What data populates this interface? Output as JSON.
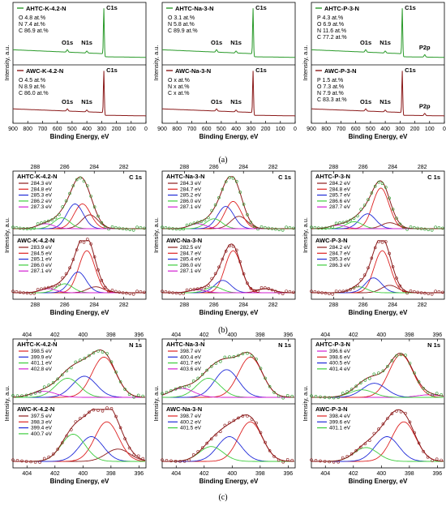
{
  "figure": {
    "captions": [
      "(a)",
      "(b)",
      "(c)"
    ],
    "colors": {
      "green": "#2a9a2a",
      "darkred": "#8b1a1a",
      "red": "#dd2222",
      "blue": "#1f2ad8",
      "magenta": "#d21ed2",
      "lightgreen": "#3ecc3e",
      "olive": "#7a8a2a"
    }
  },
  "chart_data": [
    {
      "id": "a1",
      "row": "a",
      "col": 0,
      "type": "line",
      "ylabel": "Intensity, a.u.",
      "xlabel": "Binding Energy, eV",
      "xticks": [
        900,
        800,
        700,
        600,
        500,
        400,
        300,
        200,
        100,
        0
      ],
      "xlim": [
        900,
        0
      ],
      "top": {
        "label": "AHTC-K-4.2-N",
        "legend_color": "green",
        "comp": [
          "O 4.8 at.%",
          "N 7.4 at.%",
          "C 86.9 at.%"
        ],
        "peaks": [
          "O1s",
          "N1s",
          "C1s"
        ],
        "has_p": false
      },
      "bottom": {
        "label": "AWC-K-4.2-N",
        "legend_color": "darkred",
        "comp": [
          "O 4.5 at.%",
          "N 8.9 at.%",
          "C 86.0 at.%"
        ],
        "peaks": [
          "O1s",
          "N1s",
          "C1s"
        ],
        "has_p": false
      }
    },
    {
      "id": "a2",
      "row": "a",
      "col": 1,
      "type": "line",
      "ylabel": "Intensity, a.u.",
      "xlabel": "Binding Energy, eV",
      "xticks": [
        900,
        800,
        700,
        600,
        500,
        400,
        300,
        200,
        100,
        0
      ],
      "xlim": [
        900,
        0
      ],
      "top": {
        "label": "AHTC-Na-3-N",
        "legend_color": "green",
        "comp": [
          "O 3.1 at.%",
          "N 5.8 at.%",
          "C 89.9 at.%"
        ],
        "peaks": [
          "O1s",
          "N1s",
          "C1s"
        ],
        "has_p": false
      },
      "bottom": {
        "label": "AWC-Na-3-N",
        "legend_color": "darkred",
        "comp": [
          "O x at.%",
          "N x at.%",
          "C x at.%"
        ],
        "peaks": [
          "O1s",
          "N1s",
          "C1s"
        ],
        "has_p": false
      }
    },
    {
      "id": "a3",
      "row": "a",
      "col": 2,
      "type": "line",
      "ylabel": "Intensity, a.u.",
      "xlabel": "Binding Energy, eV",
      "xticks": [
        900,
        800,
        700,
        600,
        500,
        400,
        300,
        200,
        100,
        0
      ],
      "xlim": [
        900,
        0
      ],
      "top": {
        "label": "AHTC-P-3-N",
        "legend_color": "green",
        "comp": [
          "P 4.3 at.%",
          "O 6.9 at.%",
          "N 11.6 at.%",
          "C 77.2 at.%"
        ],
        "peaks": [
          "O1s",
          "N1s",
          "C1s",
          "P2p"
        ],
        "has_p": true
      },
      "bottom": {
        "label": "AWC-P-3-N",
        "legend_color": "darkred",
        "comp": [
          "P 1.5 at.%",
          "O 7.3 at.%",
          "N 7.9 at.%",
          "C 83.3 at.%"
        ],
        "peaks": [
          "O1s",
          "N1s",
          "C1s",
          "P2p"
        ],
        "has_p": true
      }
    },
    {
      "id": "b1",
      "row": "b",
      "col": 0,
      "type": "line",
      "ylabel": "Intensity, a.u.",
      "xlabel": "Binding Energy, eV",
      "xticks": [
        288,
        286,
        284,
        282
      ],
      "xlim": [
        289.5,
        280.5
      ],
      "corner": "C 1s",
      "top": {
        "label": "AHTC-K-4.2-N",
        "entries": [
          {
            "t": "284.3 eV",
            "c": "darkred"
          },
          {
            "t": "284.8 eV",
            "c": "red"
          },
          {
            "t": "285.3 eV",
            "c": "blue"
          },
          {
            "t": "286.2 eV",
            "c": "lightgreen"
          },
          {
            "t": "287.3 eV",
            "c": "magenta"
          }
        ],
        "centers": [
          284.3,
          284.8,
          285.3,
          286.2,
          287.3
        ],
        "amps": [
          0.28,
          0.5,
          0.5,
          0.22,
          0.1
        ]
      },
      "bottom": {
        "label": "AWC-K-4.2-N",
        "entries": [
          {
            "t": "283.9 eV",
            "c": "darkred"
          },
          {
            "t": "284.5 eV",
            "c": "red"
          },
          {
            "t": "285.1 eV",
            "c": "blue"
          },
          {
            "t": "286.0 eV",
            "c": "lightgreen"
          },
          {
            "t": "287.1 eV",
            "c": "magenta"
          }
        ],
        "centers": [
          283.9,
          284.5,
          285.1,
          286.0,
          287.1
        ],
        "amps": [
          0.12,
          0.85,
          0.42,
          0.18,
          0.08
        ]
      }
    },
    {
      "id": "b2",
      "row": "b",
      "col": 1,
      "type": "line",
      "ylabel": "Intensity, a.u.",
      "xlabel": "Binding Energy, eV",
      "xticks": [
        288,
        286,
        284,
        282
      ],
      "xlim": [
        289.5,
        280.5
      ],
      "corner": "C 1s",
      "top": {
        "label": "AHTC-Na-3-N",
        "entries": [
          {
            "t": "284.3 eV",
            "c": "darkred"
          },
          {
            "t": "284.7 eV",
            "c": "red"
          },
          {
            "t": "285.2 eV",
            "c": "blue"
          },
          {
            "t": "286.0 eV",
            "c": "lightgreen"
          },
          {
            "t": "287.1 eV",
            "c": "magenta"
          }
        ],
        "centers": [
          284.3,
          284.7,
          285.2,
          286.0,
          287.1
        ],
        "amps": [
          0.25,
          0.55,
          0.45,
          0.2,
          0.1
        ]
      },
      "bottom": {
        "label": "AWC-Na-3-N",
        "entries": [
          {
            "t": "282.5 eV",
            "c": "darkred"
          },
          {
            "t": "284.7 eV",
            "c": "red"
          },
          {
            "t": "285.4 eV",
            "c": "blue"
          },
          {
            "t": "286.0 eV",
            "c": "lightgreen"
          },
          {
            "t": "287.1 eV",
            "c": "magenta"
          }
        ],
        "centers": [
          282.5,
          284.7,
          285.4,
          286.0,
          287.1
        ],
        "amps": [
          0.08,
          0.85,
          0.25,
          0.12,
          0.06
        ]
      }
    },
    {
      "id": "b3",
      "row": "b",
      "col": 2,
      "type": "line",
      "ylabel": "Intensity, a.u.",
      "xlabel": "Binding Energy, eV",
      "xticks": [
        288,
        286,
        284,
        282
      ],
      "xlim": [
        289.5,
        280.5
      ],
      "corner": "C 1s",
      "top": {
        "label": "AHTC-P-3-N",
        "entries": [
          {
            "t": "284.2 eV",
            "c": "darkred"
          },
          {
            "t": "284.8 eV",
            "c": "red"
          },
          {
            "t": "285.7 eV",
            "c": "blue"
          },
          {
            "t": "286.6 eV",
            "c": "lightgreen"
          },
          {
            "t": "287.7 eV",
            "c": "magenta"
          }
        ],
        "centers": [
          284.2,
          284.8,
          285.7,
          286.6,
          287.7
        ],
        "amps": [
          0.12,
          0.82,
          0.3,
          0.14,
          0.07
        ]
      },
      "bottom": {
        "label": "AWC-P-3-N",
        "entries": [
          {
            "t": "284.2 eV",
            "c": "darkred"
          },
          {
            "t": "284.7 eV",
            "c": "red"
          },
          {
            "t": "285.3 eV",
            "c": "blue"
          },
          {
            "t": "286.3 eV",
            "c": "lightgreen"
          }
        ],
        "centers": [
          284.2,
          284.7,
          285.3,
          286.3
        ],
        "amps": [
          0.15,
          0.85,
          0.3,
          0.12
        ]
      }
    },
    {
      "id": "c1",
      "row": "c",
      "col": 0,
      "type": "line",
      "ylabel": "Intensity, a.u.",
      "xlabel": "Binding Energy, eV",
      "xticks": [
        404,
        402,
        400,
        398,
        396
      ],
      "xlim": [
        405,
        395.5
      ],
      "corner": "N 1s",
      "top": {
        "label": "AHTC-K-4.2-N",
        "entries": [
          {
            "t": "398.5 eV",
            "c": "red"
          },
          {
            "t": "399.9 eV",
            "c": "blue"
          },
          {
            "t": "401.1 eV",
            "c": "lightgreen"
          },
          {
            "t": "402.8 eV",
            "c": "magenta"
          }
        ],
        "centers": [
          398.5,
          399.9,
          401.1,
          402.8
        ],
        "amps": [
          0.8,
          0.42,
          0.38,
          0.12
        ]
      },
      "bottom": {
        "label": "AWC-K-4.2-N",
        "entries": [
          {
            "t": "397.5 eV",
            "c": "darkred"
          },
          {
            "t": "398.3 eV",
            "c": "red"
          },
          {
            "t": "399.4 eV",
            "c": "blue"
          },
          {
            "t": "400.7 eV",
            "c": "lightgreen"
          }
        ],
        "centers": [
          397.5,
          398.3,
          399.4,
          400.7
        ],
        "amps": [
          0.25,
          0.8,
          0.5,
          0.55
        ]
      }
    },
    {
      "id": "c2",
      "row": "c",
      "col": 1,
      "type": "line",
      "ylabel": "Intensity, a.u.",
      "xlabel": "Binding Energy, eV",
      "xticks": [
        404,
        402,
        400,
        398,
        396
      ],
      "xlim": [
        405,
        395.5
      ],
      "corner": "N 1s",
      "top": {
        "label": "AHTC-Na-3-N",
        "entries": [
          {
            "t": "398.7 eV",
            "c": "red"
          },
          {
            "t": "400.4 eV",
            "c": "blue"
          },
          {
            "t": "401.7 eV",
            "c": "lightgreen"
          },
          {
            "t": "403.6 eV",
            "c": "magenta"
          }
        ],
        "centers": [
          398.7,
          400.4,
          401.7,
          403.6
        ],
        "amps": [
          0.8,
          0.55,
          0.38,
          0.18
        ]
      },
      "bottom": {
        "label": "AWC-Na-3-N",
        "entries": [
          {
            "t": "398.7 eV",
            "c": "red"
          },
          {
            "t": "400.2 eV",
            "c": "blue"
          },
          {
            "t": "401.5 eV",
            "c": "lightgreen"
          }
        ],
        "centers": [
          398.7,
          400.2,
          401.5
        ],
        "amps": [
          0.8,
          0.5,
          0.3
        ]
      }
    },
    {
      "id": "c3",
      "row": "c",
      "col": 2,
      "type": "line",
      "ylabel": "Intensity, a.u.",
      "xlabel": "Binding Energy, eV",
      "xticks": [
        404,
        402,
        400,
        398,
        396
      ],
      "xlim": [
        405,
        395.5
      ],
      "corner": "N 1s",
      "top": {
        "label": "AHTC-P-3-N",
        "entries": [
          {
            "t": "396.6 eV",
            "c": "magenta"
          },
          {
            "t": "398.6 eV",
            "c": "red"
          },
          {
            "t": "400.5 eV",
            "c": "blue"
          },
          {
            "t": "401.4 eV",
            "c": "lightgreen"
          }
        ],
        "centers": [
          396.6,
          398.6,
          400.5,
          401.4
        ],
        "amps": [
          0.05,
          0.85,
          0.28,
          0.15
        ]
      },
      "bottom": {
        "label": "AWC-P-3-N",
        "entries": [
          {
            "t": "398.4 eV",
            "c": "red"
          },
          {
            "t": "399.6 eV",
            "c": "blue"
          },
          {
            "t": "401.1 eV",
            "c": "lightgreen"
          }
        ],
        "centers": [
          398.4,
          399.6,
          401.1
        ],
        "amps": [
          0.8,
          0.5,
          0.28
        ]
      }
    }
  ]
}
